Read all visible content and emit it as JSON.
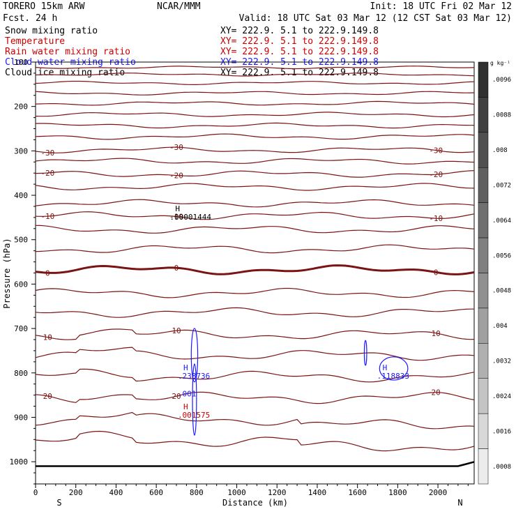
{
  "header": {
    "model": "TORERO  15km ARW",
    "forecast": "Fcst.    24 h",
    "center": "NCAR/MMM",
    "init": "Init: 18 UTC Fri 02 Mar 12",
    "valid": "Valid: 18 UTC Sat 03 Mar 12 (12 CST Sat 03 Mar 12)"
  },
  "fields": [
    {
      "label": "Snow mixing ratio",
      "xy": "XY= 222.9.  5.1 to 222.9.149.8",
      "color": "#000000",
      "xy_color": "#000000"
    },
    {
      "label": "Temperature",
      "xy": "XY= 222.9.  5.1 to 222.9.149.8",
      "color": "#cc0000",
      "xy_color": "#cc0000"
    },
    {
      "label": "Rain water mixing ratio",
      "xy": "XY= 222.9.  5.1 to 222.9.149.8",
      "color": "#cc0000",
      "xy_color": "#cc0000"
    },
    {
      "label": "Cloud water mixing ratio",
      "xy": "XY= 222.9.  5.1 to 222.9.149.8",
      "color": "#1a1aff",
      "xy_color": "#1a1aff"
    },
    {
      "label": "Cloud ice mixing ratio",
      "xy": "XY= 222.9.  5.1 to 222.9.149.8",
      "color": "#000000",
      "xy_color": "#000000"
    }
  ],
  "colors": {
    "temperature": "#7a1414",
    "rain": "#cc0000",
    "cloud_water": "#1a1aff",
    "terrain": "#000000"
  },
  "chart_data": {
    "type": "contour-cross-section",
    "xlabel": "Distance (km)",
    "ylabel": "Pressure (hPa)",
    "xlim": [
      0,
      2180
    ],
    "ylim": [
      1050,
      100
    ],
    "x_ticks": [
      0,
      200,
      400,
      600,
      800,
      1000,
      1200,
      1400,
      1600,
      1800,
      2000
    ],
    "y_ticks": [
      1000,
      900,
      800,
      700,
      600,
      500,
      400,
      300,
      200,
      100
    ],
    "end_labels": {
      "left": "S",
      "right": "N"
    },
    "colorbar": {
      "unit": "g kg⁻¹",
      "labels": [
        ".0096",
        ".0088",
        ".008",
        ".0072",
        ".0064",
        ".0056",
        ".0048",
        ".004",
        ".0032",
        ".0024",
        ".0016",
        ".0008"
      ],
      "shades": [
        "#303030",
        "#404040",
        "#505050",
        "#606060",
        "#707070",
        "#808080",
        "#909090",
        "#a0a0a0",
        "#b0b0b0",
        "#c4c4c4",
        "#d8d8d8",
        "#ececec"
      ]
    },
    "temperature_isotherms": [
      {
        "value": -30,
        "label": "-30"
      },
      {
        "value": -20,
        "label": "-20"
      },
      {
        "value": -10,
        "label": "-10"
      },
      {
        "value": 0,
        "label": "0"
      },
      {
        "value": 10,
        "label": "10"
      },
      {
        "value": 20,
        "label": "20"
      }
    ],
    "maxima": [
      {
        "marker": "H",
        "value": ".00001444",
        "x_km": 750,
        "p_hpa": 452,
        "field": "snow"
      },
      {
        "marker": "H",
        "value": ".238736",
        "x_km": 790,
        "p_hpa": 810,
        "field": "cloud_water"
      },
      {
        "marker": "",
        "value": ".001",
        "x_km": 790,
        "p_hpa": 850,
        "field": "cloud_water"
      },
      {
        "marker": "H",
        "value": ".001575",
        "x_km": 790,
        "p_hpa": 898,
        "field": "rain"
      },
      {
        "marker": "H",
        "value": ".118833",
        "x_km": 1780,
        "p_hpa": 810,
        "field": "cloud_water"
      }
    ],
    "surface_pressure_hpa": 1010
  }
}
